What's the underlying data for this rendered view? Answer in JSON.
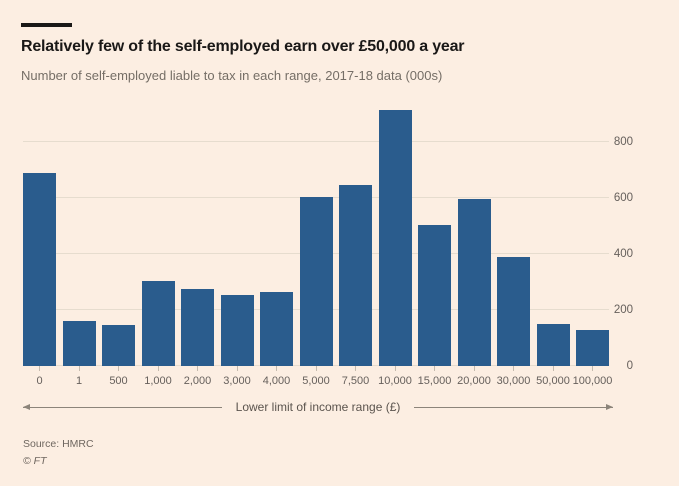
{
  "page": {
    "background_color": "#FCEEE2",
    "accent_bar_color": "#1A1817"
  },
  "header": {
    "title": "Relatively few of the self-employed earn over £50,000 a year",
    "subtitle": "Number of self-employed liable to tax in each range, 2017-18 data (000s)"
  },
  "footer": {
    "source": "Source: HMRC",
    "copyright": "© FT"
  },
  "chart_data": {
    "type": "bar",
    "title": "Relatively few of the self-employed earn over £50,000 a year",
    "subtitle": "Number of self-employed liable to tax in each range, 2017-18 data (000s)",
    "categories": [
      "0",
      "1",
      "500",
      "1,000",
      "2,000",
      "3,000",
      "4,000",
      "5,000",
      "7,500",
      "10,000",
      "15,000",
      "20,000",
      "30,000",
      "50,000",
      "100,000"
    ],
    "values": [
      690,
      160,
      145,
      305,
      275,
      255,
      265,
      605,
      645,
      915,
      505,
      595,
      390,
      150,
      130
    ],
    "xlabel": "Lower limit of income range (£)",
    "ylabel": "",
    "y_ticks": [
      0,
      200,
      400,
      600,
      800
    ],
    "ylim": [
      0,
      920
    ],
    "bar_color": "#2A5C8D",
    "gridline_color": "#E6DCCE",
    "grid": true,
    "y_axis_side": "right",
    "legend": "none",
    "source": "Source: HMRC"
  }
}
